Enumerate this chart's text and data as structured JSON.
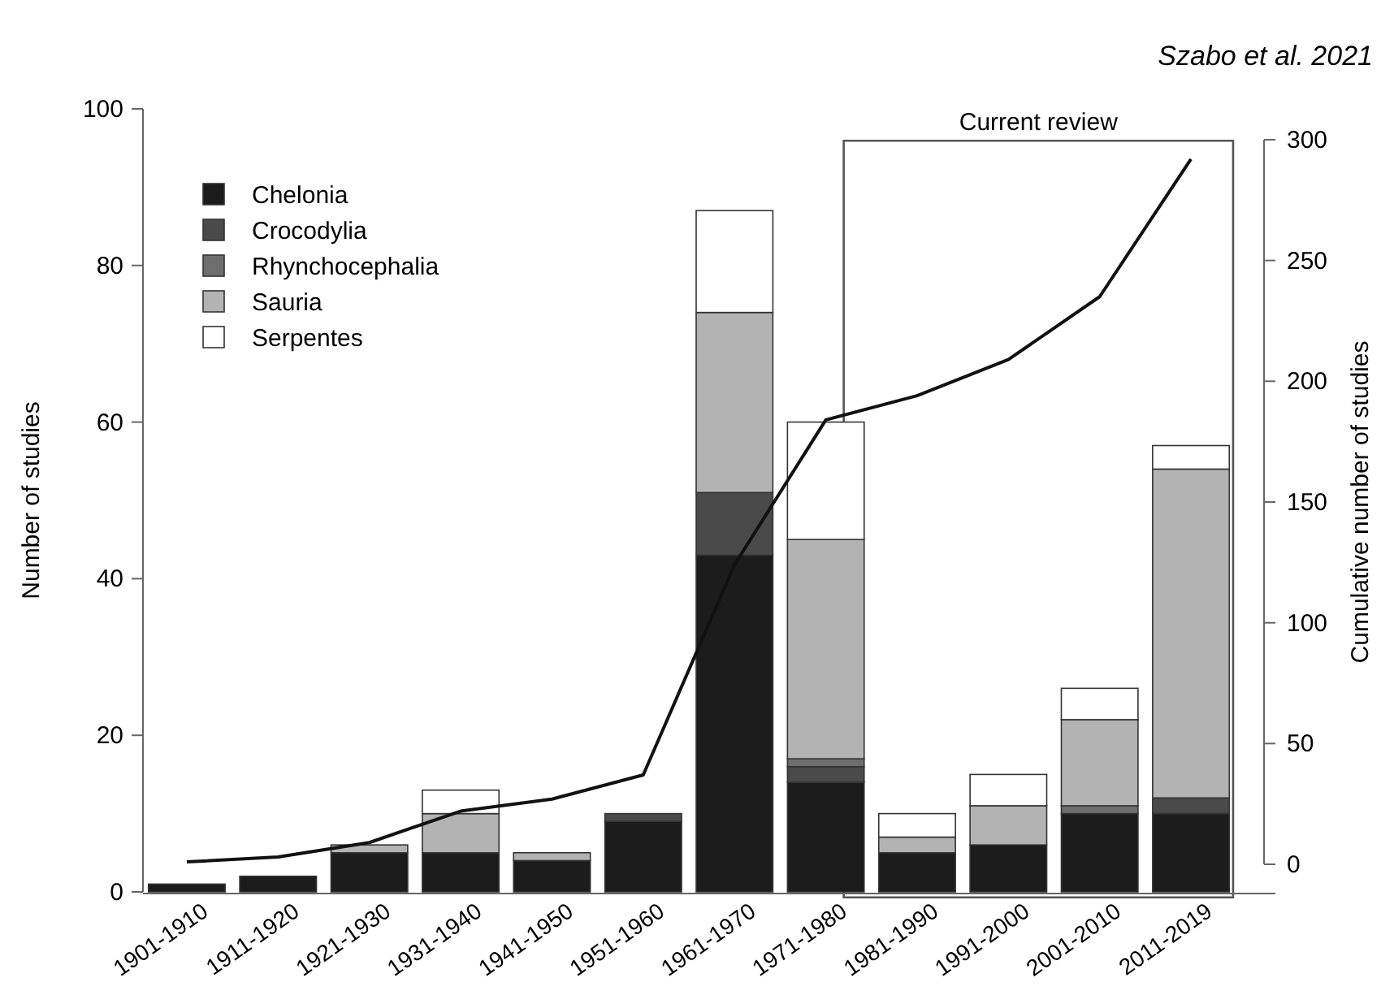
{
  "chart_data": {
    "type": "bar",
    "stacked": true,
    "categories": [
      "1901-1910",
      "1911-1920",
      "1921-1930",
      "1931-1940",
      "1941-1950",
      "1951-1960",
      "1961-1970",
      "1971-1980",
      "1981-1990",
      "1991-2000",
      "2001-2010",
      "2011-2019"
    ],
    "series": [
      {
        "name": "Chelonia",
        "color": "#1c1c1c",
        "values": [
          1,
          2,
          5,
          5,
          4,
          9,
          43,
          14,
          5,
          6,
          10,
          10
        ]
      },
      {
        "name": "Crocodylia",
        "color": "#4a4a4a",
        "values": [
          0,
          0,
          0,
          0,
          0,
          1,
          8,
          2,
          0,
          0,
          0,
          2
        ]
      },
      {
        "name": "Rhynchocephalia",
        "color": "#6e6e6e",
        "values": [
          0,
          0,
          0,
          0,
          0,
          0,
          0,
          1,
          0,
          0,
          1,
          0
        ]
      },
      {
        "name": "Sauria",
        "color": "#b3b3b3",
        "values": [
          0,
          0,
          1,
          5,
          1,
          0,
          23,
          28,
          2,
          5,
          11,
          42
        ]
      },
      {
        "name": "Serpentes",
        "color": "#ffffff",
        "values": [
          0,
          0,
          0,
          3,
          0,
          0,
          13,
          15,
          3,
          4,
          4,
          3
        ]
      },
      {
        "type": "line",
        "axis": "y2",
        "color": "#111111",
        "values": [
          1,
          3,
          9,
          22,
          27,
          37,
          124,
          184,
          194,
          209,
          235,
          292
        ]
      }
    ],
    "ylabel": "Number of studies",
    "y2label": "Cumulative number of studies",
    "ylim": [
      0,
      100
    ],
    "yticks": [
      0,
      20,
      40,
      60,
      80,
      100
    ],
    "y2lim": [
      0,
      300
    ],
    "y2ticks": [
      0,
      50,
      100,
      150,
      200,
      250,
      300
    ],
    "annotations": [
      "Szabo et al. 2021",
      "Current review"
    ],
    "legend": "top left"
  }
}
